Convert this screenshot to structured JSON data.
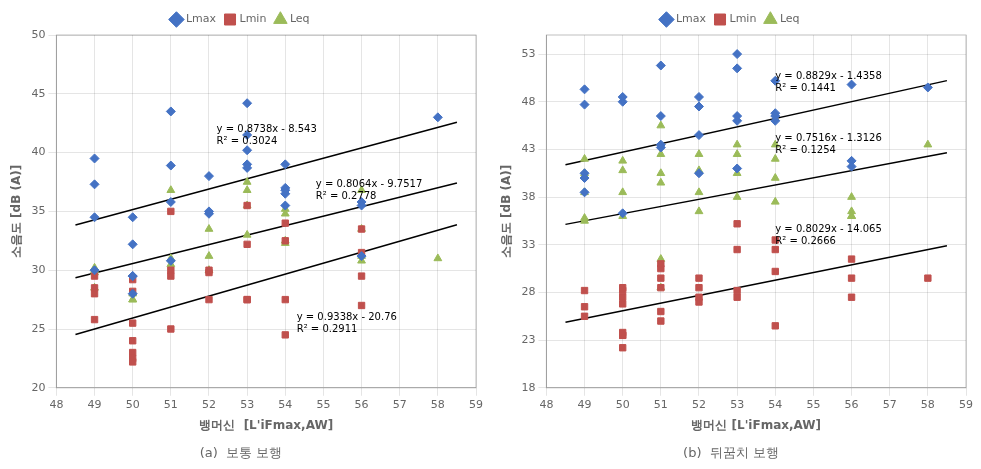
{
  "chart_data": [
    {
      "type": "scatter",
      "title": "(a)  보통 보행",
      "x_label": "뱅머신  [L'iFmax,AW]",
      "y_label": "소음도 [dB (A)]",
      "xlim": [
        48,
        59
      ],
      "ylim": [
        20,
        50
      ],
      "xticks": [
        48,
        49,
        50,
        51,
        52,
        53,
        54,
        55,
        56,
        57,
        58,
        59
      ],
      "yticks": [
        20,
        25,
        30,
        35,
        40,
        45,
        50
      ],
      "grid": true,
      "legend": "upper center",
      "series": [
        {
          "name": "Lmax",
          "type": "scatter",
          "color": "#4472C4",
          "marker": "diamond",
          "x": [
            49,
            49,
            49,
            49,
            50,
            50,
            50,
            50,
            50,
            51,
            51,
            51,
            51,
            52,
            52,
            52,
            53,
            53,
            53,
            53,
            53,
            54,
            54,
            54,
            54,
            54,
            56,
            56,
            56,
            58
          ],
          "values": [
            39.5,
            37.3,
            34.5,
            30.0,
            34.5,
            32.2,
            29.5,
            29.5,
            28.0,
            43.5,
            38.9,
            35.8,
            30.8,
            38.0,
            35.0,
            34.8,
            44.2,
            41.5,
            40.2,
            39.0,
            38.7,
            39.0,
            37.0,
            36.8,
            36.5,
            35.5,
            35.8,
            35.5,
            31.2,
            43.0
          ]
        },
        {
          "name": "Lmin",
          "type": "scatter",
          "color": "#C0504D",
          "marker": "square",
          "x": [
            49,
            49,
            49,
            49,
            50,
            50,
            50,
            50,
            50,
            50,
            50,
            51,
            51,
            51,
            51,
            52,
            52,
            52,
            53,
            53,
            53,
            53,
            54,
            54,
            54,
            54,
            56,
            56,
            56,
            56
          ],
          "values": [
            25.8,
            28.0,
            28.5,
            29.5,
            25.5,
            24.0,
            23.0,
            22.5,
            22.2,
            28.2,
            29.2,
            25.0,
            30.0,
            29.5,
            35.0,
            27.5,
            29.8,
            30.0,
            27.5,
            27.5,
            32.2,
            35.5,
            24.5,
            27.5,
            32.5,
            34.0,
            27.0,
            29.5,
            31.5,
            33.5
          ]
        },
        {
          "name": "Leq",
          "type": "scatter",
          "color": "#9BBB59",
          "marker": "triangle",
          "x": [
            49,
            49,
            49,
            49,
            50,
            50,
            50,
            51,
            51,
            51,
            52,
            52,
            52,
            53,
            53,
            53,
            53,
            54,
            54,
            54,
            54,
            56,
            56,
            56,
            56,
            58
          ],
          "values": [
            30.0,
            30.2,
            29.8,
            28.5,
            28.0,
            27.5,
            27.5,
            31.0,
            30.5,
            36.8,
            31.2,
            30.0,
            33.5,
            37.5,
            36.8,
            35.5,
            33.0,
            32.5,
            32.3,
            35.2,
            34.8,
            31.2,
            36.8,
            33.5,
            30.8,
            31.0
          ]
        },
        {
          "type": "line",
          "color": "#000000",
          "line_style": "solid",
          "x": [
            48.5,
            58.5
          ],
          "values": [
            33.8363,
            42.5743
          ]
        },
        {
          "type": "line",
          "color": "#000000",
          "line_style": "solid",
          "x": [
            48.5,
            58.5
          ],
          "values": [
            29.3587,
            37.4227
          ]
        },
        {
          "type": "line",
          "color": "#000000",
          "line_style": "solid",
          "x": [
            48.5,
            58.5
          ],
          "values": [
            24.5293,
            33.8673
          ]
        }
      ],
      "annotations": [
        {
          "text": "y = 0.8738x - 8.543\nR² = 0.3024",
          "x": 52.2,
          "y": 41.5
        },
        {
          "text": "y = 0.8064x - 9.7517\nR² = 0.2778",
          "x": 54.8,
          "y": 36.8
        },
        {
          "text": "y = 0.9338x - 20.76\nR² = 0.2911",
          "x": 54.3,
          "y": 25.5
        }
      ]
    },
    {
      "type": "scatter",
      "title": "(b)  뒤꿈치 보행",
      "x_label": "뱅머신 [L'iFmax,AW]",
      "y_label": "소음도 [dB (A)]",
      "xlim": [
        48,
        59
      ],
      "ylim": [
        18,
        55
      ],
      "xticks": [
        48,
        49,
        50,
        51,
        52,
        53,
        54,
        55,
        56,
        57,
        58,
        59
      ],
      "yticks": [
        18,
        23,
        28,
        33,
        38,
        43,
        48,
        53
      ],
      "grid": true,
      "legend": "upper center",
      "series": [
        {
          "name": "Lmax",
          "type": "scatter",
          "color": "#4472C4",
          "marker": "diamond",
          "x": [
            49,
            49,
            49,
            49,
            49,
            50,
            50,
            50,
            51,
            51,
            51,
            51,
            52,
            52,
            52,
            52,
            53,
            53,
            53,
            53,
            53,
            54,
            54,
            54,
            54,
            56,
            56,
            56,
            58
          ],
          "values": [
            49.3,
            47.7,
            40.5,
            40.0,
            38.5,
            48.0,
            48.5,
            36.3,
            51.8,
            46.5,
            43.5,
            43.2,
            48.5,
            47.5,
            44.5,
            40.5,
            53.0,
            51.5,
            46.5,
            46.0,
            41.0,
            50.2,
            46.8,
            46.5,
            46.0,
            49.8,
            41.8,
            41.2,
            49.5
          ]
        },
        {
          "name": "Lmin",
          "type": "scatter",
          "color": "#C0504D",
          "marker": "square",
          "x": [
            49,
            49,
            49,
            50,
            50,
            50,
            50,
            50,
            50,
            50,
            50,
            51,
            51,
            51,
            51,
            51,
            51,
            52,
            52,
            52,
            52,
            53,
            53,
            53,
            53,
            54,
            54,
            54,
            54,
            56,
            56,
            56,
            58
          ],
          "values": [
            25.5,
            26.5,
            28.2,
            22.2,
            23.5,
            23.5,
            23.8,
            26.8,
            27.5,
            28.2,
            28.5,
            25.0,
            26.0,
            28.5,
            29.5,
            30.5,
            31.0,
            27.0,
            27.5,
            28.5,
            29.5,
            27.5,
            28.2,
            32.5,
            35.2,
            24.5,
            30.2,
            32.5,
            33.5,
            29.5,
            31.5,
            27.5,
            29.5
          ]
        },
        {
          "name": "Leq",
          "type": "scatter",
          "color": "#9BBB59",
          "marker": "triangle",
          "x": [
            49,
            49,
            49,
            49,
            49,
            50,
            50,
            50,
            50,
            51,
            51,
            51,
            51,
            51,
            51,
            52,
            52,
            52,
            52,
            53,
            53,
            53,
            53,
            54,
            54,
            54,
            54,
            56,
            56,
            56,
            56,
            58
          ],
          "values": [
            42.0,
            40.5,
            38.5,
            35.5,
            35.8,
            41.8,
            40.8,
            38.5,
            36.0,
            45.5,
            42.5,
            40.5,
            39.5,
            31.5,
            28.5,
            42.5,
            40.8,
            38.5,
            36.5,
            43.5,
            42.5,
            40.5,
            38.0,
            43.5,
            42.0,
            40.0,
            37.5,
            36.5,
            38.0,
            36.0,
            36.0,
            43.5
          ]
        },
        {
          "type": "line",
          "color": "#000000",
          "line_style": "solid",
          "x": [
            48.5,
            58.5
          ],
          "values": [
            41.38485,
            50.21385
          ]
        },
        {
          "type": "line",
          "color": "#000000",
          "line_style": "solid",
          "x": [
            48.5,
            58.5
          ],
          "values": [
            35.14,
            42.656
          ]
        },
        {
          "type": "line",
          "color": "#000000",
          "line_style": "solid",
          "x": [
            48.5,
            58.5
          ],
          "values": [
            24.87565,
            32.90465
          ]
        }
      ],
      "annotations": [
        {
          "text": "y = 0.8829x - 1.4358\nR² = 0.1441",
          "x": 54.0,
          "y": 50.0
        },
        {
          "text": "y = 0.7516x - 1.3126\nR² = 0.1254",
          "x": 54.0,
          "y": 43.5
        },
        {
          "text": "y = 0.8029x - 14.065\nR² = 0.2666",
          "x": 54.0,
          "y": 34.0
        }
      ]
    }
  ]
}
